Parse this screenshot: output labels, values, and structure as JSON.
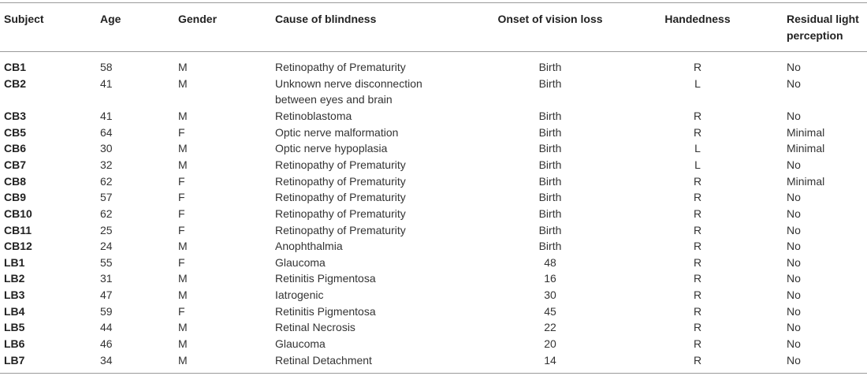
{
  "headers": {
    "subject": "Subject",
    "age": "Age",
    "gender": "Gender",
    "cause": "Cause of blindness",
    "onset": "Onset of vision loss",
    "handedness": "Handedness",
    "residual_line1": "Residual light",
    "residual_line2": "perception"
  },
  "rows": [
    {
      "subject": "CB1",
      "age": "58",
      "gender": "M",
      "cause": "Retinopathy of Prematurity",
      "cause2": "",
      "onset": "Birth",
      "hand": "R",
      "residual": "No"
    },
    {
      "subject": "CB2",
      "age": "41",
      "gender": "M",
      "cause": "Unknown nerve disconnection",
      "cause2": "between eyes and brain",
      "onset": "Birth",
      "hand": "L",
      "residual": "No"
    },
    {
      "subject": "CB3",
      "age": "41",
      "gender": "M",
      "cause": "Retinoblastoma",
      "cause2": "",
      "onset": "Birth",
      "hand": "R",
      "residual": "No"
    },
    {
      "subject": "CB5",
      "age": "64",
      "gender": "F",
      "cause": "Optic nerve malformation",
      "cause2": "",
      "onset": "Birth",
      "hand": "R",
      "residual": "Minimal"
    },
    {
      "subject": "CB6",
      "age": "30",
      "gender": "M",
      "cause": "Optic nerve hypoplasia",
      "cause2": "",
      "onset": "Birth",
      "hand": "L",
      "residual": "Minimal"
    },
    {
      "subject": "CB7",
      "age": "32",
      "gender": "M",
      "cause": "Retinopathy of Prematurity",
      "cause2": "",
      "onset": "Birth",
      "hand": "L",
      "residual": "No"
    },
    {
      "subject": "CB8",
      "age": "62",
      "gender": "F",
      "cause": "Retinopathy of Prematurity",
      "cause2": "",
      "onset": "Birth",
      "hand": "R",
      "residual": "Minimal"
    },
    {
      "subject": "CB9",
      "age": "57",
      "gender": "F",
      "cause": "Retinopathy of Prematurity",
      "cause2": "",
      "onset": "Birth",
      "hand": "R",
      "residual": "No"
    },
    {
      "subject": "CB10",
      "age": "62",
      "gender": "F",
      "cause": "Retinopathy of Prematurity",
      "cause2": "",
      "onset": "Birth",
      "hand": "R",
      "residual": "No"
    },
    {
      "subject": "CB11",
      "age": "25",
      "gender": "F",
      "cause": "Retinopathy of Prematurity",
      "cause2": "",
      "onset": "Birth",
      "hand": "R",
      "residual": "No"
    },
    {
      "subject": "CB12",
      "age": "24",
      "gender": "M",
      "cause": "Anophthalmia",
      "cause2": "",
      "onset": "Birth",
      "hand": "R",
      "residual": "No"
    },
    {
      "subject": "LB1",
      "age": "55",
      "gender": "F",
      "cause": "Glaucoma",
      "cause2": "",
      "onset": "48",
      "hand": "R",
      "residual": "No"
    },
    {
      "subject": "LB2",
      "age": "31",
      "gender": "M",
      "cause": "Retinitis Pigmentosa",
      "cause2": "",
      "onset": "16",
      "hand": "R",
      "residual": "No"
    },
    {
      "subject": "LB3",
      "age": "47",
      "gender": "M",
      "cause": "Iatrogenic",
      "cause2": "",
      "onset": "30",
      "hand": "R",
      "residual": "No"
    },
    {
      "subject": "LB4",
      "age": "59",
      "gender": "F",
      "cause": "Retinitis Pigmentosa",
      "cause2": "",
      "onset": "45",
      "hand": "R",
      "residual": "No"
    },
    {
      "subject": "LB5",
      "age": "44",
      "gender": "M",
      "cause": "Retinal Necrosis",
      "cause2": "",
      "onset": "22",
      "hand": "R",
      "residual": "No"
    },
    {
      "subject": "LB6",
      "age": "46",
      "gender": "M",
      "cause": "Glaucoma",
      "cause2": "",
      "onset": "20",
      "hand": "R",
      "residual": "No"
    },
    {
      "subject": "LB7",
      "age": "34",
      "gender": "M",
      "cause": "Retinal Detachment",
      "cause2": "",
      "onset": "14",
      "hand": "R",
      "residual": "No"
    }
  ]
}
